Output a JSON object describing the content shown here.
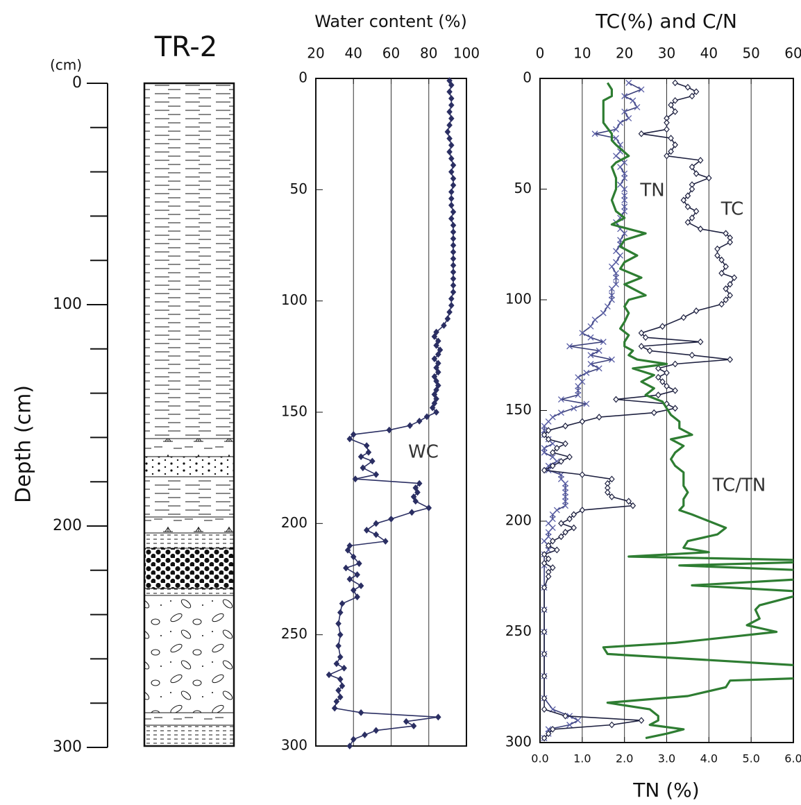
{
  "chart_data": [
    {
      "type": "column",
      "title": "TR-2",
      "unit_label": "(cm)",
      "ylabel": "Depth (cm)",
      "ylim": [
        0,
        300
      ],
      "yticks": [
        0,
        100,
        200,
        300
      ],
      "yminorticks": [
        20,
        40,
        60,
        80,
        120,
        140,
        160,
        180,
        220,
        240,
        260,
        280
      ]
    },
    {
      "type": "line",
      "title": "Water content (%)",
      "xlim": [
        20,
        100
      ],
      "xticks": [
        20,
        40,
        60,
        80,
        100
      ],
      "ylim": [
        0,
        300
      ],
      "yticks": [
        0,
        50,
        100,
        150,
        200,
        250,
        300
      ],
      "grid": true,
      "series": [
        {
          "name": "WC",
          "color": "#2b2f63",
          "marker": "diamond",
          "y": [
            1,
            3,
            6,
            9,
            12,
            15,
            18,
            21,
            24,
            27,
            30,
            33,
            36,
            39,
            42,
            45,
            48,
            51,
            54,
            57,
            60,
            63,
            66,
            69,
            72,
            75,
            78,
            81,
            84,
            87,
            90,
            93,
            96,
            99,
            102,
            105,
            108,
            111,
            114,
            116,
            118,
            120,
            122,
            124,
            126,
            128,
            130,
            132,
            134,
            136,
            138,
            140,
            142,
            144,
            146,
            148,
            150,
            152,
            154,
            156,
            158,
            160,
            162,
            165,
            168,
            170,
            172,
            175,
            178,
            180,
            182,
            184,
            186,
            188,
            190,
            193,
            195,
            198,
            200,
            203,
            205,
            208,
            210,
            212,
            215,
            218,
            220,
            223,
            225,
            228,
            230,
            233,
            236,
            240,
            245,
            250,
            255,
            260,
            263,
            265,
            268,
            270,
            273,
            275,
            278,
            280,
            283,
            285,
            287,
            289,
            291,
            293,
            295,
            297,
            300
          ],
          "values": [
            91,
            92,
            91,
            92,
            92,
            91,
            92,
            91,
            90,
            91,
            92,
            91,
            92,
            93,
            92,
            93,
            93,
            92,
            92,
            92,
            93,
            92,
            93,
            93,
            93,
            93,
            93,
            93,
            93,
            93,
            93,
            93,
            93,
            92,
            92,
            91,
            90,
            88,
            84,
            83,
            85,
            84,
            86,
            85,
            83,
            85,
            84,
            85,
            83,
            84,
            85,
            84,
            83,
            84,
            83,
            82,
            84,
            79,
            75,
            70,
            59,
            40,
            38,
            47,
            48,
            44,
            50,
            45,
            52,
            41,
            75,
            73,
            74,
            72,
            73,
            80,
            71,
            60,
            52,
            47,
            52,
            57,
            38,
            37,
            40,
            43,
            36,
            42,
            38,
            44,
            40,
            42,
            34,
            33,
            32,
            33,
            32,
            33,
            31,
            35,
            27,
            33,
            34,
            32,
            33,
            31,
            30,
            44,
            85,
            68,
            72,
            52,
            46,
            40,
            38
          ]
        }
      ]
    },
    {
      "type": "line",
      "title": "TC(%) and C/N",
      "x2label": "TN (%)",
      "xlim": [
        0,
        60
      ],
      "xticks": [
        0,
        10,
        20,
        30,
        40,
        50,
        60
      ],
      "x2lim": [
        0,
        6
      ],
      "x2ticks": [
        {
          "value": 0,
          "label": "0.0"
        },
        {
          "value": 1,
          "label": "1.0"
        },
        {
          "value": 2,
          "label": "2.0"
        },
        {
          "value": 3,
          "label": "3.0"
        },
        {
          "value": 4,
          "label": "4.0"
        },
        {
          "value": 5,
          "label": "5.0"
        },
        {
          "value": 6,
          "label": "6.0"
        }
      ],
      "ylim": [
        0,
        300
      ],
      "yticks": [
        0,
        50,
        100,
        150,
        200,
        250,
        300
      ],
      "grid": true,
      "series": [
        {
          "name": "TN",
          "color": "#3a3f7a",
          "marker": "x",
          "axis": "x2",
          "y": [
            2,
            5,
            8,
            10,
            13,
            15,
            18,
            20,
            23,
            25,
            27,
            30,
            33,
            35,
            38,
            40,
            43,
            45,
            48,
            50,
            53,
            55,
            58,
            60,
            63,
            65,
            68,
            70,
            73,
            75,
            78,
            80,
            83,
            85,
            88,
            90,
            93,
            95,
            98,
            100,
            103,
            106,
            109,
            112,
            115,
            117,
            119,
            121,
            123,
            125,
            127,
            129,
            131,
            133,
            135,
            137,
            139,
            141,
            143,
            145,
            147,
            149,
            151,
            153,
            155,
            157,
            159,
            161,
            163,
            165,
            167,
            169,
            171,
            173,
            175,
            177,
            179,
            181,
            183,
            185,
            187,
            189,
            191,
            193,
            195,
            197,
            199,
            201,
            203,
            205,
            207,
            209,
            211,
            213,
            215,
            220,
            230,
            240,
            250,
            260,
            270,
            280,
            285,
            288,
            290,
            292,
            294,
            296,
            298
          ],
          "values": [
            2.1,
            2.4,
            2.0,
            2.2,
            2.3,
            2.0,
            2.1,
            1.9,
            1.8,
            1.3,
            1.8,
            1.9,
            1.9,
            1.8,
            2.0,
            1.9,
            2.0,
            2.0,
            1.9,
            2.0,
            2.0,
            2.0,
            2.0,
            2.0,
            1.9,
            1.8,
            1.9,
            2.0,
            1.9,
            1.9,
            1.8,
            1.9,
            1.8,
            1.7,
            1.8,
            1.8,
            1.8,
            1.7,
            1.7,
            1.7,
            1.6,
            1.5,
            1.3,
            1.2,
            1.0,
            1.2,
            1.5,
            0.7,
            1.4,
            1.2,
            1.7,
            1.2,
            1.4,
            1.1,
            0.9,
            1.0,
            0.9,
            0.9,
            0.9,
            0.5,
            1.1,
            0.8,
            0.5,
            0.3,
            0.2,
            0.1,
            0.1,
            0.1,
            0.2,
            0.3,
            0.1,
            0.1,
            0.3,
            0.4,
            0.2,
            0.2,
            0.5,
            0.5,
            0.6,
            0.6,
            0.6,
            0.6,
            0.6,
            0.6,
            0.4,
            0.3,
            0.3,
            0.2,
            0.3,
            0.2,
            0.2,
            0.1,
            0.2,
            0.2,
            0.1,
            0.1,
            0.1,
            0.1,
            0.1,
            0.1,
            0.1,
            0.1,
            0.3,
            0.7,
            0.9,
            0.7,
            0.2,
            0.2,
            0.1
          ]
        },
        {
          "name": "TC",
          "color": "#1e2140",
          "marker": "diamond",
          "y": [
            2,
            4,
            6,
            8,
            10,
            12,
            15,
            18,
            20,
            23,
            25,
            27,
            30,
            33,
            35,
            37,
            40,
            43,
            45,
            48,
            50,
            53,
            55,
            58,
            60,
            63,
            65,
            68,
            70,
            72,
            74,
            77,
            80,
            82,
            85,
            88,
            90,
            93,
            95,
            98,
            100,
            102,
            105,
            108,
            112,
            115,
            117,
            119,
            121,
            123,
            125,
            127,
            129,
            131,
            133,
            135,
            137,
            139,
            141,
            143,
            145,
            147,
            149,
            151,
            153,
            155,
            157,
            159,
            161,
            163,
            165,
            167,
            169,
            171,
            173,
            175,
            177,
            179,
            181,
            183,
            185,
            187,
            189,
            191,
            193,
            195,
            197,
            199,
            201,
            203,
            205,
            207,
            209,
            211,
            213,
            215,
            217,
            219,
            221,
            223,
            225,
            230,
            240,
            250,
            260,
            270,
            280,
            285,
            288,
            290,
            292,
            294,
            296,
            298
          ],
          "values": [
            32,
            35,
            37,
            36,
            32,
            31,
            32,
            30,
            30,
            30,
            24,
            31,
            32,
            31,
            30,
            38,
            36,
            37,
            40,
            36,
            36,
            35,
            34,
            35,
            37,
            36,
            35,
            38,
            44,
            45,
            45,
            42,
            42,
            43,
            44,
            43,
            46,
            45,
            44,
            45,
            44,
            43,
            37,
            34,
            29,
            24,
            25,
            38,
            24,
            26,
            36,
            45,
            32,
            28,
            30,
            28,
            29,
            30,
            32,
            28,
            18,
            30,
            32,
            27,
            14,
            10,
            6,
            2,
            1,
            2,
            6,
            4,
            3,
            7,
            5,
            3,
            1,
            10,
            17,
            16,
            16,
            16,
            17,
            21,
            22,
            10,
            8,
            7,
            5,
            8,
            6,
            5,
            3,
            2,
            4,
            1,
            2,
            1,
            3,
            2,
            2,
            1,
            1,
            1,
            1,
            1,
            1,
            1,
            6,
            24,
            17,
            3,
            2,
            1
          ]
        },
        {
          "name": "TC/TN",
          "color": "#2e7d32",
          "marker": null,
          "y": [
            2,
            5,
            8,
            10,
            15,
            20,
            25,
            28,
            30,
            35,
            38,
            40,
            45,
            50,
            55,
            60,
            63,
            66,
            70,
            73,
            76,
            80,
            83,
            86,
            90,
            93,
            95,
            98,
            100,
            103,
            106,
            110,
            113,
            116,
            119,
            121,
            123,
            125,
            127,
            129,
            131,
            134,
            137,
            140,
            143,
            146,
            149,
            152,
            155,
            158,
            161,
            163,
            166,
            169,
            172,
            175,
            178,
            181,
            184,
            187,
            190,
            193,
            195,
            197,
            200,
            203,
            206,
            209,
            212,
            214,
            216,
            218,
            220,
            222,
            226,
            229,
            232,
            238,
            240,
            244,
            247,
            250,
            255,
            257,
            260,
            265,
            270,
            272,
            275,
            279,
            282,
            285,
            288,
            290,
            292,
            294,
            296,
            298
          ],
          "values": [
            16,
            17,
            17,
            15,
            15,
            15,
            17,
            17,
            18,
            21,
            18,
            17,
            18,
            18,
            17,
            18,
            20,
            17,
            25,
            20,
            19,
            23,
            20,
            19,
            24,
            20,
            22,
            25,
            21,
            20,
            21,
            20,
            19,
            21,
            20,
            20,
            22,
            21,
            23,
            30,
            22,
            27,
            24,
            27,
            25,
            29,
            30,
            31,
            33,
            33,
            36,
            31,
            34,
            32,
            31,
            32,
            34,
            34,
            34,
            35,
            34,
            34,
            33,
            36,
            40,
            44,
            42,
            35,
            34,
            40,
            21,
            72,
            33,
            60,
            64,
            36,
            64,
            52,
            51,
            52,
            49,
            56,
            32,
            15,
            16,
            60,
            76,
            45,
            44,
            35,
            16,
            26,
            28,
            28,
            26,
            34,
            30,
            25
          ]
        }
      ]
    }
  ]
}
